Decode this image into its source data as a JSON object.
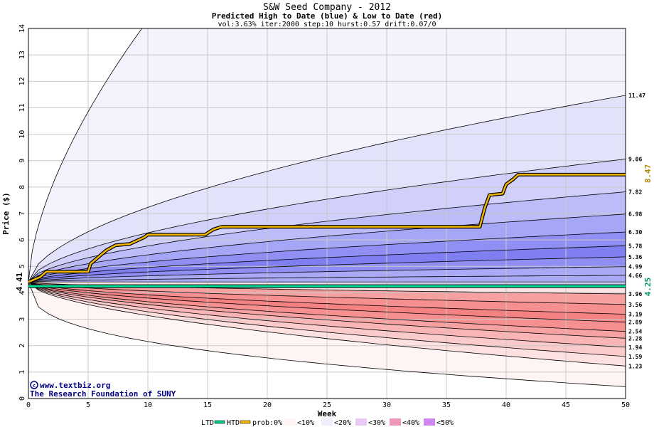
{
  "chart_data": {
    "type": "area",
    "title": "S&W Seed Company - 2012",
    "subtitle": "Predicted High to Date (blue) &  Low to Date (red)",
    "params": "vol:3.63% iter:2000 step:10 hurst:0.57 drift:0.07/0",
    "xlabel": "Week",
    "ylabel": "Price ($)",
    "xlim": [
      0,
      50
    ],
    "ylim": [
      0,
      14
    ],
    "xticks": [
      "0",
      "5",
      "10",
      "15",
      "20",
      "25",
      "30",
      "35",
      "40",
      "45",
      "50"
    ],
    "yticks": [
      "0",
      "1",
      "2",
      "3",
      "4",
      "5",
      "6",
      "7",
      "8",
      "9",
      "10",
      "11",
      "12",
      "13",
      "14"
    ],
    "grid": true,
    "start_price": 4.41,
    "start_label": "4.41",
    "high_to_date_label": "8.47",
    "high_to_date_color": "#b8860b",
    "low_to_date_label": "4.25",
    "low_to_date_color": "#009966",
    "upper_band_end_values": [
      11.47,
      9.06,
      7.82,
      6.98,
      6.3,
      5.78,
      5.36,
      4.99,
      4.66
    ],
    "upper_band_labels": [
      "11.47",
      "9.06",
      "7.82",
      "6.98",
      "6.30",
      "5.78",
      "5.36",
      "4.99",
      "4.66"
    ],
    "lower_band_end_values": [
      3.96,
      3.56,
      3.19,
      2.89,
      2.54,
      2.28,
      1.94,
      1.59,
      1.23
    ],
    "lower_band_labels": [
      "3.96",
      "3.56",
      "3.19",
      "2.89",
      "2.54",
      "2.28",
      "1.94",
      "1.59",
      "1.23"
    ],
    "outer_upper_at_week10": 14.0,
    "outer_lower_end": 0.45,
    "htd_path": [
      [
        0,
        4.41
      ],
      [
        1,
        4.6
      ],
      [
        1.5,
        4.8
      ],
      [
        5,
        4.8
      ],
      [
        5.2,
        5.1
      ],
      [
        6.5,
        5.6
      ],
      [
        7.3,
        5.8
      ],
      [
        8.5,
        5.85
      ],
      [
        9.7,
        6.1
      ],
      [
        10,
        6.2
      ],
      [
        14.8,
        6.2
      ],
      [
        15.5,
        6.4
      ],
      [
        16.2,
        6.5
      ],
      [
        37.8,
        6.5
      ],
      [
        38.2,
        7.2
      ],
      [
        38.6,
        7.7
      ],
      [
        39.7,
        7.75
      ],
      [
        40,
        8.1
      ],
      [
        40.6,
        8.3
      ],
      [
        41,
        8.47
      ],
      [
        50,
        8.47
      ]
    ],
    "ltd_value": 4.25,
    "legend": {
      "ltd": "LTD",
      "htd": "HTD",
      "prob": "prob:0%",
      "b10": "<10%",
      "b20": "<20%",
      "b30": "<30%",
      "b40": "<40%",
      "b50": "<50%"
    },
    "credit_line1": "www.textbiz.org",
    "credit_line2": "The Research Foundation of SUNY"
  },
  "colors": {
    "upper_bands": [
      "#f4f2fc",
      "#e3e2fb",
      "#d0d0fa",
      "#bcbcf8",
      "#a6a6f6",
      "#9090f4",
      "#7f7ff2",
      "#8e8ef3",
      "#a9a9f5"
    ],
    "lower_bands": [
      "#f7a0a0",
      "#f69090",
      "#f48282",
      "#f68f8f",
      "#f7a2a2",
      "#f9b5b5",
      "#fbcaca",
      "#fde0e0",
      "#fff4f4"
    ],
    "legend_swatches": [
      "#fff4f4",
      "#f0eefc",
      "#e9c8f2",
      "#ee99bb",
      "#cc88ee"
    ]
  }
}
